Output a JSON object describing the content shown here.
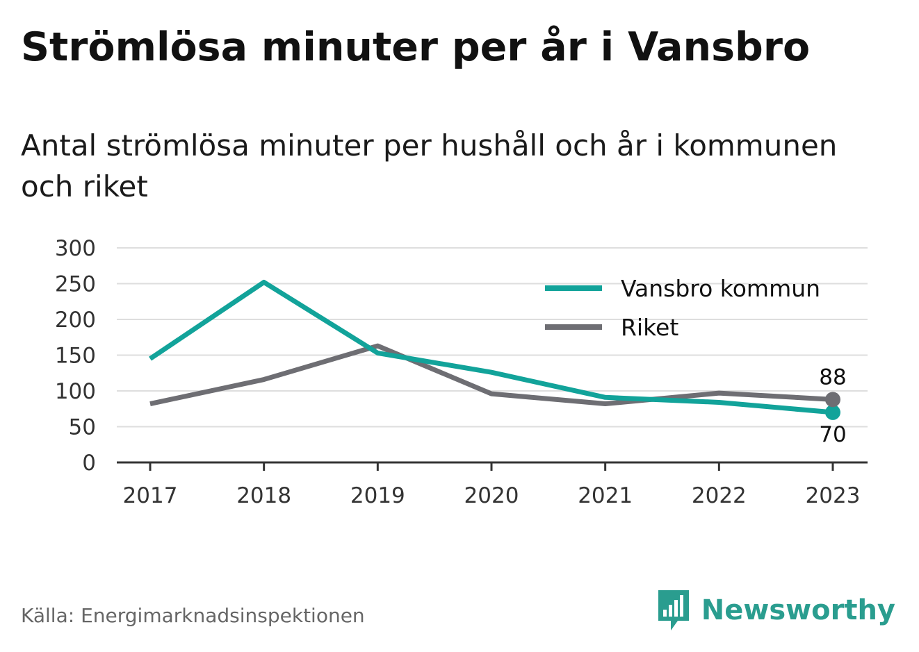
{
  "page": {
    "title": "Strömlösa minuter per år i Vansbro",
    "subtitle": "Antal strömlösa minuter per hushåll och år i kommunen och riket",
    "source": "Källa: Energimarknadsinspektionen",
    "brand": "Newsworthy",
    "brand_icon": "newsworthy-logo-icon",
    "brand_color": "#2a9d8f"
  },
  "chart_data": {
    "type": "line",
    "x": [
      "2017",
      "2018",
      "2019",
      "2020",
      "2021",
      "2022",
      "2023"
    ],
    "ylim": [
      0,
      300
    ],
    "yticks": [
      0,
      50,
      100,
      150,
      200,
      250,
      300
    ],
    "grid": true,
    "legend_position": "top-right",
    "series": [
      {
        "name": "Vansbro kommun",
        "color": "#12a39a",
        "values": [
          145,
          252,
          153,
          126,
          91,
          84,
          70
        ],
        "end_label": "70",
        "end_label_position": "below"
      },
      {
        "name": "Riket",
        "color": "#6e6e73",
        "values": [
          82,
          116,
          163,
          96,
          82,
          97,
          88
        ],
        "end_label": "88",
        "end_label_position": "above"
      }
    ]
  }
}
